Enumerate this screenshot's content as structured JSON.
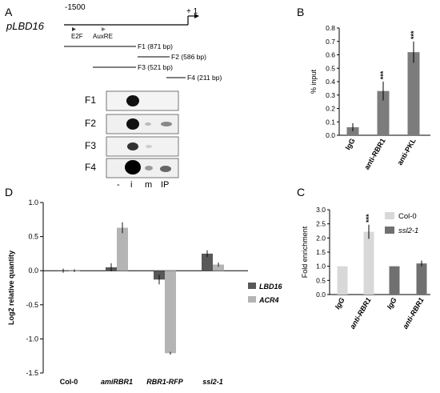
{
  "panel_letters": {
    "a": "A",
    "b": "B",
    "c": "C",
    "d": "D"
  },
  "panel_a": {
    "promoter": "pLBD16",
    "pos_start": "-1500",
    "pos_end": "+ 1",
    "motifs": [
      "E2F",
      "AuxRE"
    ],
    "fragments": [
      "F1 (871 bp)",
      "F2 (586 bp)",
      "F3 (521 bp)",
      "F4 (211 bp)"
    ],
    "gel_rows": [
      "F1",
      "F2",
      "F3",
      "F4"
    ],
    "gel_lanes": [
      "-",
      "i",
      "m",
      "IP"
    ]
  },
  "chart_data": [
    {
      "panel": "B",
      "type": "bar",
      "categories": [
        "IgG",
        "anti-RBR1",
        "anti-PKL"
      ],
      "values": [
        0.06,
        0.33,
        0.62
      ],
      "errors": [
        0.03,
        0.07,
        0.08
      ],
      "significance": [
        "",
        "***",
        "***"
      ],
      "ylabel": "% input",
      "ylim": [
        0,
        0.8
      ],
      "yticks": [
        "0.0",
        "0.1",
        "0.2",
        "0.3",
        "0.4",
        "0.5",
        "0.6",
        "0.7",
        "0.8"
      ],
      "bar_color": "#7c7c7c"
    },
    {
      "panel": "C",
      "type": "bar",
      "categories": [
        "IgG",
        "anti-RBR1",
        "IgG",
        "anti-RBR1"
      ],
      "values": [
        1.0,
        2.22,
        1.0,
        1.1
      ],
      "errors": [
        0,
        0.25,
        0,
        0.1
      ],
      "bar_series": [
        0,
        0,
        1,
        1
      ],
      "significance": [
        "",
        "***",
        "",
        ""
      ],
      "series": [
        {
          "name": "Col-0",
          "color": "#d8d8d8"
        },
        {
          "name": "ssl2-1",
          "color": "#707070"
        }
      ],
      "ylabel": "Fold enrichment",
      "ylim": [
        0,
        3.0
      ],
      "yticks": [
        "0.0",
        "0.5",
        "1.0",
        "1.5",
        "2.0",
        "2.5",
        "3.0"
      ],
      "legend": "top-right"
    },
    {
      "panel": "D",
      "type": "bar",
      "categories": [
        "Col-0",
        "amiRBR1",
        "RBR1-RFP",
        "ssl2-1"
      ],
      "series": [
        {
          "name": "LBD16",
          "values": [
            0.0,
            0.05,
            -0.13,
            0.25
          ],
          "errors": [
            0.03,
            0.06,
            0.07,
            0.05
          ],
          "color": "#585858"
        },
        {
          "name": "ACR4",
          "values": [
            0.0,
            0.63,
            -1.21,
            0.09
          ],
          "errors": [
            0.02,
            0.08,
            0.02,
            0.03
          ],
          "color": "#b4b4b4"
        }
      ],
      "ylabel": "Log2 relative quantity",
      "ylim": [
        -1.5,
        1.0
      ],
      "yticks": [
        "1.0",
        "0.5",
        "0.0",
        "-0.5",
        "-1.0",
        "-1.5"
      ],
      "legend": "right"
    }
  ]
}
